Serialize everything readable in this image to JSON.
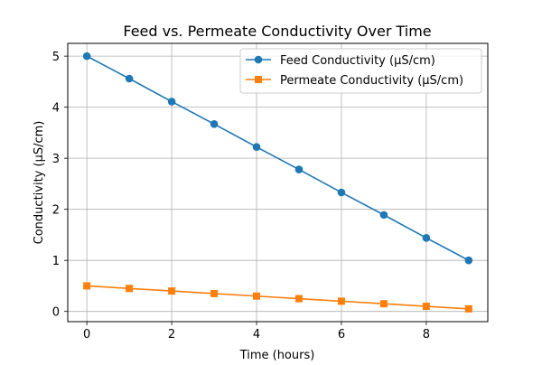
{
  "chart_data": {
    "type": "line",
    "title": "Feed vs. Permeate Conductivity Over Time",
    "xlabel": "Time (hours)",
    "ylabel": "Conductivity (µS/cm)",
    "xlim": [
      -0.45,
      9.45
    ],
    "ylim": [
      -0.2,
      5.25
    ],
    "x_ticks": [
      0,
      2,
      4,
      6,
      8
    ],
    "y_ticks": [
      0,
      1,
      2,
      3,
      4,
      5
    ],
    "grid": true,
    "legend_position": "top-right",
    "x": [
      0,
      1,
      2,
      3,
      4,
      5,
      6,
      7,
      8,
      9
    ],
    "series": [
      {
        "name": "Feed Conductivity (µS/cm)",
        "color": "#1f77b4",
        "marker": "circle",
        "values": [
          5.0,
          4.56,
          4.11,
          3.67,
          3.22,
          2.78,
          2.33,
          1.89,
          1.44,
          1.0
        ]
      },
      {
        "name": "Permeate Conductivity (µS/cm)",
        "color": "#ff7f0e",
        "marker": "square",
        "values": [
          0.5,
          0.45,
          0.4,
          0.35,
          0.3,
          0.25,
          0.2,
          0.15,
          0.1,
          0.05
        ]
      }
    ]
  }
}
